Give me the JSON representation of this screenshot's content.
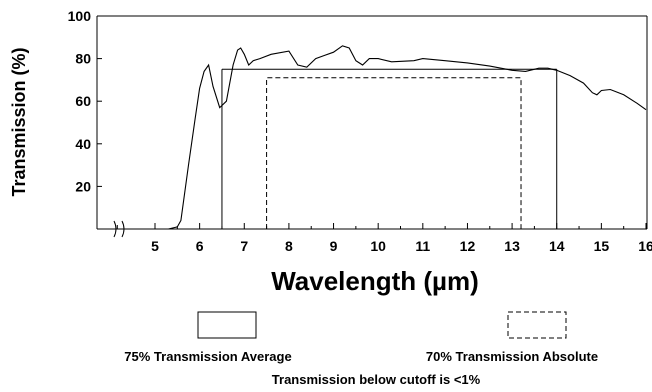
{
  "chart_data": {
    "type": "line",
    "xlabel": "Wavelength (µm)",
    "ylabel": "Transmission (%)",
    "xlim": [
      4,
      16
    ],
    "ylim": [
      0,
      100
    ],
    "x_ticks": [
      5,
      6,
      7,
      8,
      9,
      10,
      11,
      12,
      13,
      14,
      15,
      16
    ],
    "y_ticks": [
      20,
      40,
      60,
      80,
      100
    ],
    "axis_break": "between 4 and 5",
    "grid": false,
    "series": [
      {
        "values": [
          [
            4.0,
            0
          ],
          [
            5.3,
            0
          ],
          [
            5.5,
            1
          ],
          [
            5.58,
            4
          ],
          [
            5.75,
            30
          ],
          [
            5.9,
            52
          ],
          [
            6.0,
            66
          ],
          [
            6.1,
            74
          ],
          [
            6.2,
            77
          ],
          [
            6.3,
            67
          ],
          [
            6.45,
            57
          ],
          [
            6.6,
            60
          ],
          [
            6.75,
            77
          ],
          [
            6.85,
            84
          ],
          [
            6.92,
            85
          ],
          [
            7.0,
            82
          ],
          [
            7.1,
            77
          ],
          [
            7.2,
            79
          ],
          [
            7.35,
            80
          ],
          [
            7.6,
            82
          ],
          [
            8.0,
            83.5
          ],
          [
            8.2,
            77
          ],
          [
            8.4,
            76
          ],
          [
            8.6,
            80
          ],
          [
            8.8,
            81.5
          ],
          [
            9.0,
            83
          ],
          [
            9.2,
            86
          ],
          [
            9.35,
            85
          ],
          [
            9.5,
            79
          ],
          [
            9.65,
            77
          ],
          [
            9.8,
            80
          ],
          [
            10.0,
            80
          ],
          [
            10.3,
            78.5
          ],
          [
            10.8,
            79
          ],
          [
            11.0,
            80
          ],
          [
            11.5,
            79
          ],
          [
            12.0,
            78
          ],
          [
            12.5,
            76.5
          ],
          [
            13.0,
            74.5
          ],
          [
            13.3,
            74
          ],
          [
            13.6,
            75.5
          ],
          [
            13.8,
            75.5
          ],
          [
            14.0,
            74.5
          ],
          [
            14.3,
            72
          ],
          [
            14.6,
            68.5
          ],
          [
            14.8,
            64
          ],
          [
            14.9,
            63
          ],
          [
            15.0,
            65
          ],
          [
            15.2,
            65.5
          ],
          [
            15.5,
            63
          ],
          [
            15.8,
            59
          ],
          [
            16.0,
            56
          ]
        ]
      }
    ],
    "annotations": {
      "average_box": {
        "x_start": 6.5,
        "x_end": 14.0,
        "y": 75,
        "style": "solid"
      },
      "absolute_box": {
        "x_start": 7.5,
        "x_end": 13.2,
        "y": 71,
        "style": "dashed"
      }
    },
    "legend": {
      "items": [
        {
          "label": "75% Transmission Average",
          "style": "solid"
        },
        {
          "label": "70% Transmission Absolute",
          "style": "dashed"
        }
      ],
      "placement": "bottom"
    },
    "note": "Transmission below cutoff is <1%"
  }
}
